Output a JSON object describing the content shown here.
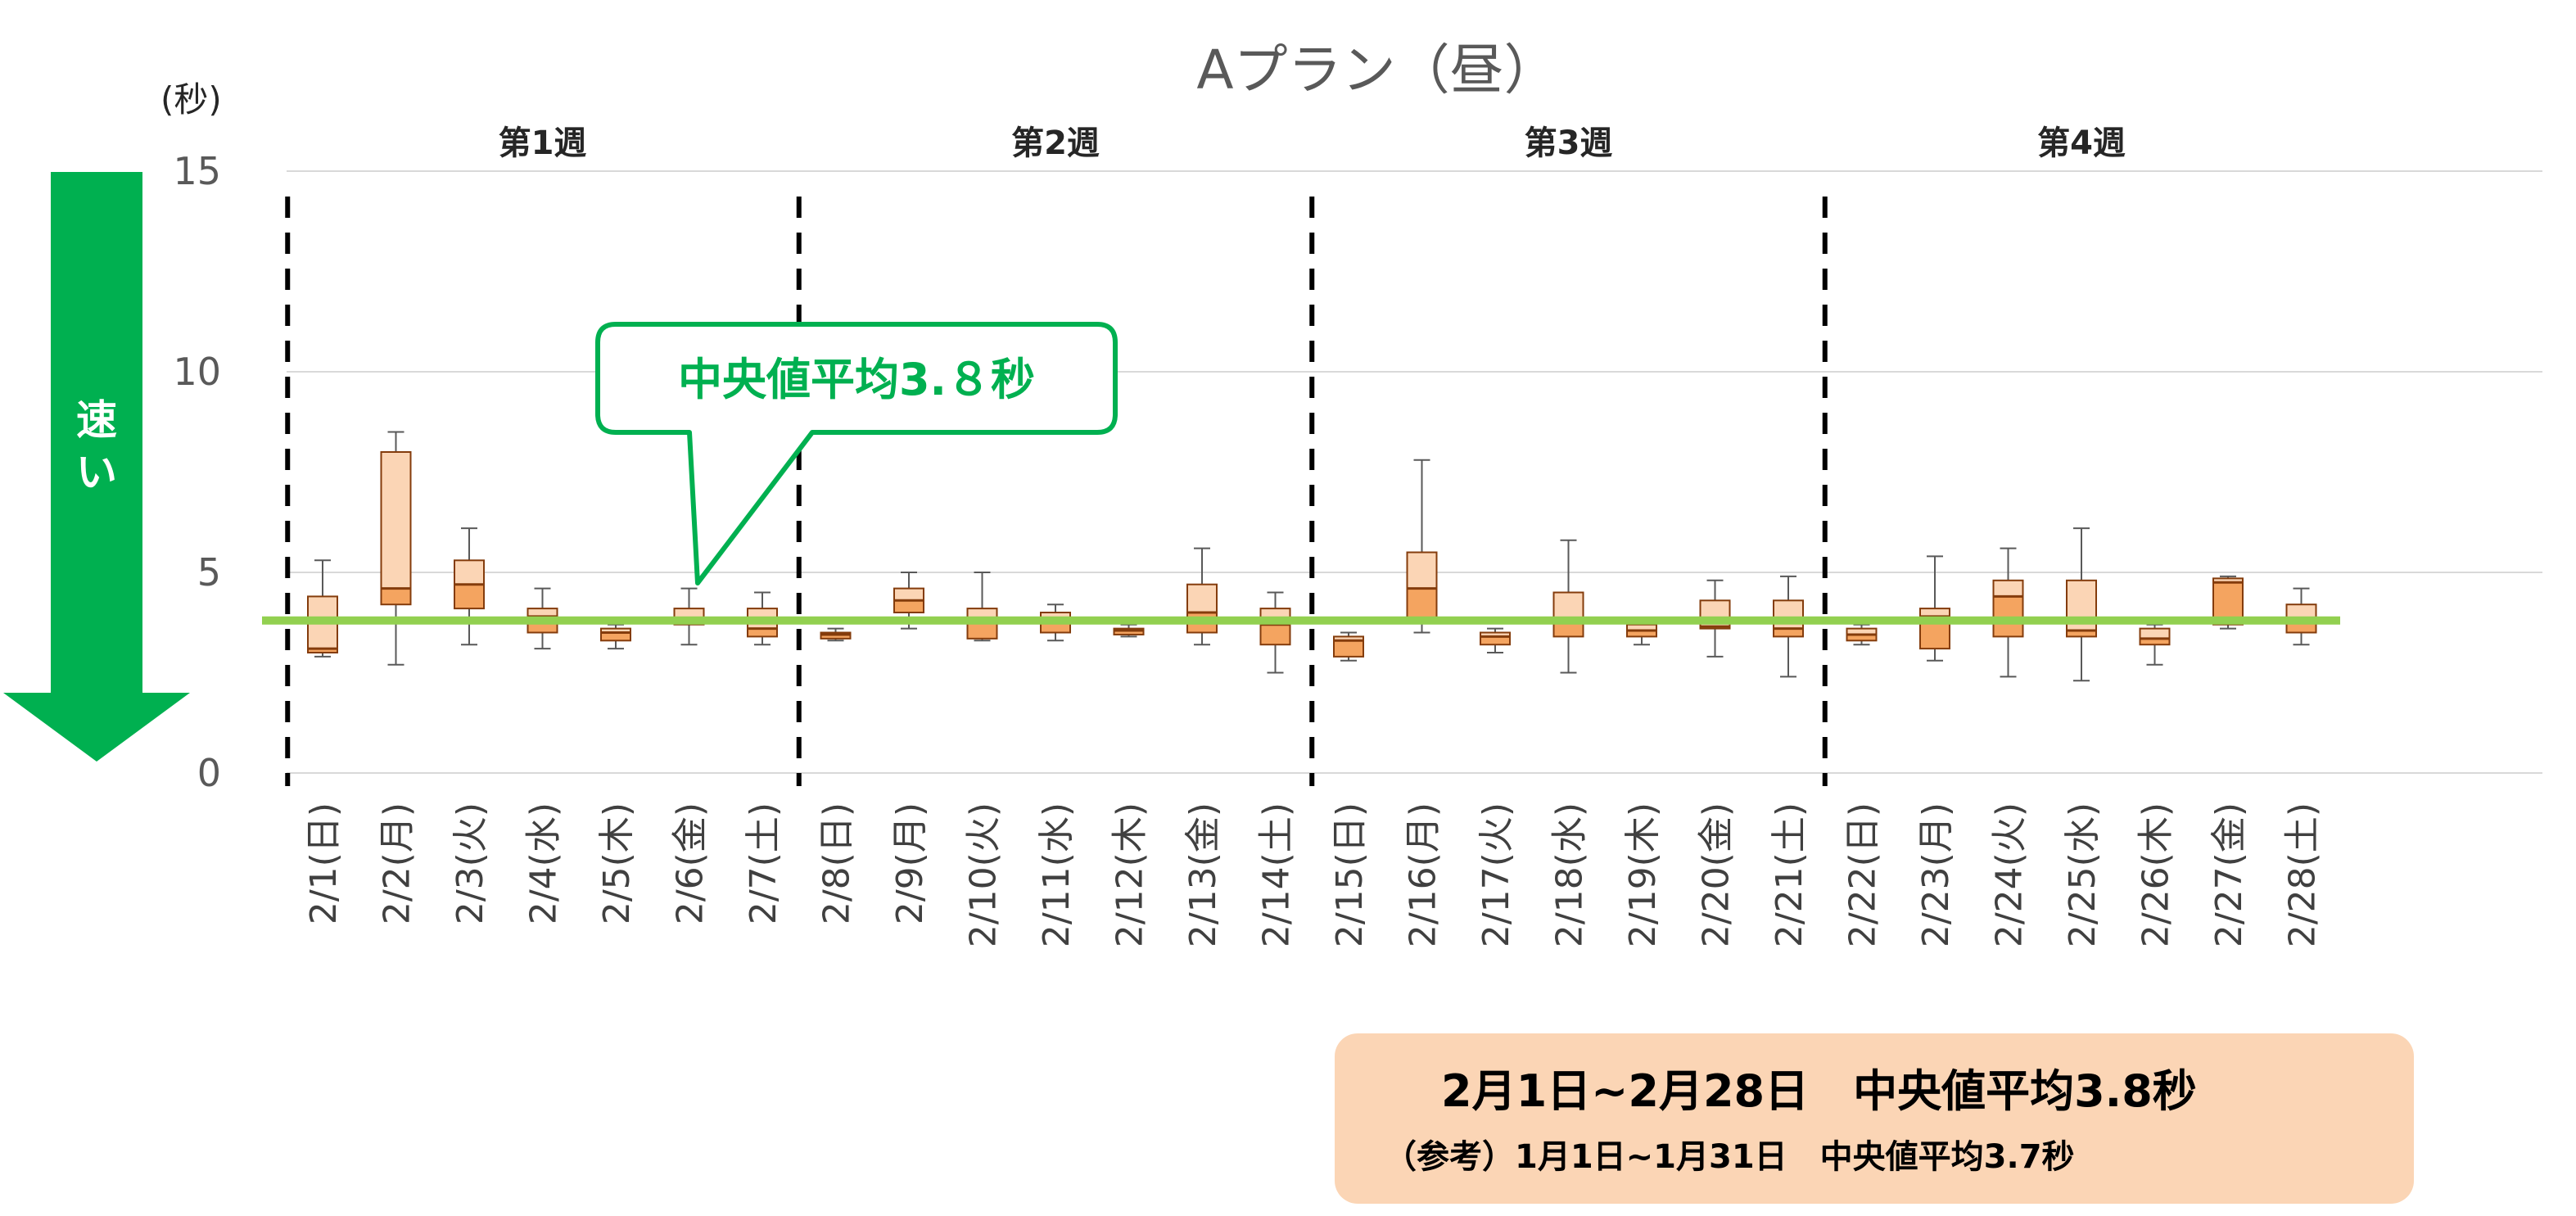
{
  "chart_data": {
    "type": "boxplot",
    "title": "Aプラン（昼）",
    "y_unit": "(秒)",
    "ylim": [
      0,
      15
    ],
    "yticks": [
      0,
      5,
      10,
      15
    ],
    "grid": true,
    "speed_arrow_label": "速い",
    "weeks": [
      {
        "label": "第1週",
        "start_index": 0
      },
      {
        "label": "第2週",
        "start_index": 7
      },
      {
        "label": "第3週",
        "start_index": 14
      },
      {
        "label": "第4週",
        "start_index": 21
      }
    ],
    "categories": [
      "2/1(日)",
      "2/2(月)",
      "2/3(火)",
      "2/4(水)",
      "2/5(木)",
      "2/6(金)",
      "2/7(土)",
      "2/8(日)",
      "2/9(月)",
      "2/10(火)",
      "2/11(水)",
      "2/12(木)",
      "2/13(金)",
      "2/14(土)",
      "2/15(日)",
      "2/16(月)",
      "2/17(火)",
      "2/18(水)",
      "2/19(木)",
      "2/20(金)",
      "2/21(土)",
      "2/22(日)",
      "2/23(月)",
      "2/24(火)",
      "2/25(水)",
      "2/26(木)",
      "2/27(金)",
      "2/28(土)"
    ],
    "boxes": [
      {
        "min": 2.9,
        "q1": 3.0,
        "median": 3.1,
        "q3": 4.4,
        "max": 5.3
      },
      {
        "min": 2.7,
        "q1": 4.2,
        "median": 4.6,
        "q3": 8.0,
        "max": 8.5
      },
      {
        "min": 3.2,
        "q1": 4.1,
        "median": 4.7,
        "q3": 5.3,
        "max": 6.1
      },
      {
        "min": 3.1,
        "q1": 3.5,
        "median": 3.9,
        "q3": 4.1,
        "max": 4.6
      },
      {
        "min": 3.1,
        "q1": 3.3,
        "median": 3.5,
        "q3": 3.6,
        "max": 3.7
      },
      {
        "min": 3.2,
        "q1": 3.7,
        "median": 3.75,
        "q3": 4.1,
        "max": 4.6
      },
      {
        "min": 3.2,
        "q1": 3.4,
        "median": 3.6,
        "q3": 4.1,
        "max": 4.5
      },
      {
        "min": 3.3,
        "q1": 3.35,
        "median": 3.45,
        "q3": 3.5,
        "max": 3.6
      },
      {
        "min": 3.6,
        "q1": 4.0,
        "median": 4.3,
        "q3": 4.6,
        "max": 5.0
      },
      {
        "min": 3.3,
        "q1": 3.35,
        "median": 3.75,
        "q3": 4.1,
        "max": 5.0
      },
      {
        "min": 3.3,
        "q1": 3.5,
        "median": 3.85,
        "q3": 4.0,
        "max": 4.2
      },
      {
        "min": 3.4,
        "q1": 3.45,
        "median": 3.55,
        "q3": 3.6,
        "max": 3.7
      },
      {
        "min": 3.2,
        "q1": 3.5,
        "median": 4.0,
        "q3": 4.7,
        "max": 5.6
      },
      {
        "min": 2.5,
        "q1": 3.2,
        "median": 3.7,
        "q3": 4.1,
        "max": 4.5
      },
      {
        "min": 2.8,
        "q1": 2.9,
        "median": 3.3,
        "q3": 3.4,
        "max": 3.5
      },
      {
        "min": 3.5,
        "q1": 3.8,
        "median": 4.6,
        "q3": 5.5,
        "max": 7.8
      },
      {
        "min": 3.0,
        "q1": 3.2,
        "median": 3.4,
        "q3": 3.5,
        "max": 3.6
      },
      {
        "min": 2.5,
        "q1": 3.4,
        "median": 3.8,
        "q3": 4.5,
        "max": 5.8
      },
      {
        "min": 3.2,
        "q1": 3.4,
        "median": 3.55,
        "q3": 3.7,
        "max": 3.8
      },
      {
        "min": 2.9,
        "q1": 3.6,
        "median": 3.65,
        "q3": 4.3,
        "max": 4.8
      },
      {
        "min": 2.4,
        "q1": 3.4,
        "median": 3.6,
        "q3": 4.3,
        "max": 4.9
      },
      {
        "min": 3.2,
        "q1": 3.3,
        "median": 3.45,
        "q3": 3.6,
        "max": 3.7
      },
      {
        "min": 2.8,
        "q1": 3.1,
        "median": 3.9,
        "q3": 4.1,
        "max": 5.4
      },
      {
        "min": 2.4,
        "q1": 3.4,
        "median": 4.4,
        "q3": 4.8,
        "max": 5.6
      },
      {
        "min": 2.3,
        "q1": 3.4,
        "median": 3.55,
        "q3": 4.8,
        "max": 6.1
      },
      {
        "min": 2.7,
        "q1": 3.2,
        "median": 3.35,
        "q3": 3.6,
        "max": 3.7
      },
      {
        "min": 3.6,
        "q1": 3.7,
        "median": 4.75,
        "q3": 4.85,
        "max": 4.9
      },
      {
        "min": 3.2,
        "q1": 3.5,
        "median": 3.75,
        "q3": 4.2,
        "max": 4.6
      }
    ],
    "average_median_line": 3.8,
    "callout_text": "中央値平均3.８秒",
    "colors": {
      "box_upper": "#fbd5b5",
      "box_lower": "#f4a460",
      "box_stroke": "#843c0c",
      "average_line": "#92d050",
      "callout_border": "#00b050",
      "arrow": "#00b050",
      "week_divider": "#000000",
      "grid": "#d9d9d9"
    }
  },
  "summary": {
    "main": "2月1日~2月28日　中央値平均3.8秒",
    "reference": "（参考）1月1日~1月31日　中央値平均3.7秒"
  }
}
